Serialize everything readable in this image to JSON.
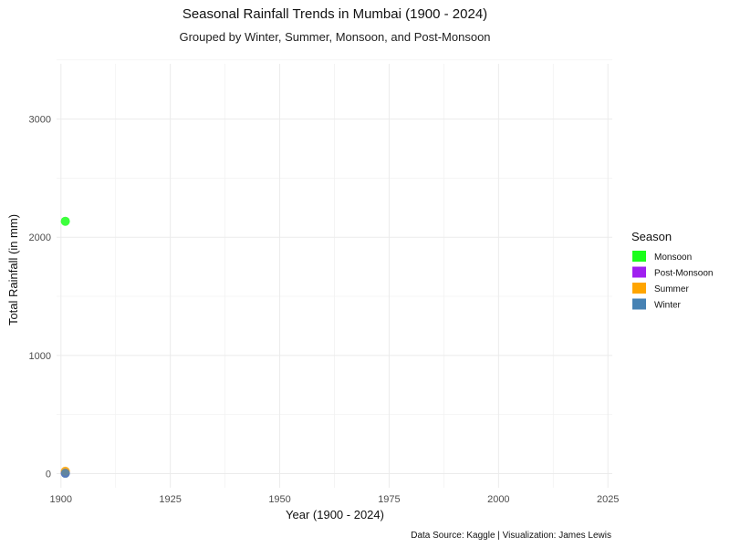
{
  "chart_data": {
    "type": "scatter",
    "title": "Seasonal Rainfall Trends in Mumbai (1900 - 2024)",
    "subtitle": "Grouped by Winter, Summer, Monsoon, and Post-Monsoon",
    "xlabel": "Year (1900 - 2024)",
    "ylabel": "Total Rainfall (in mm)",
    "caption": "Data Source: Kaggle | Visualization: James Lewis",
    "xlim": [
      1899,
      2026
    ],
    "ylim": [
      -120,
      3560
    ],
    "x_ticks": [
      1900,
      1925,
      1950,
      1975,
      2000,
      2025
    ],
    "y_ticks": [
      0,
      1000,
      2000,
      3000
    ],
    "x_tick_labels": [
      "1900",
      "1925",
      "1950",
      "1975",
      "2000",
      "2025"
    ],
    "y_tick_labels": [
      "0",
      "1000",
      "2000",
      "3000"
    ],
    "grid": true,
    "legend": {
      "title": "Season",
      "position": "right"
    },
    "series": [
      {
        "name": "Monsoon",
        "color": "#1aff1a",
        "x": [
          1901
        ],
        "y": [
          2135
        ]
      },
      {
        "name": "Post-Monsoon",
        "color": "#a020f0",
        "x": [
          1901
        ],
        "y": [
          5
        ]
      },
      {
        "name": "Summer",
        "color": "#ffa500",
        "x": [
          1901
        ],
        "y": [
          20
        ]
      },
      {
        "name": "Winter",
        "color": "#4682b4",
        "x": [
          1901
        ],
        "y": [
          2
        ]
      }
    ]
  }
}
